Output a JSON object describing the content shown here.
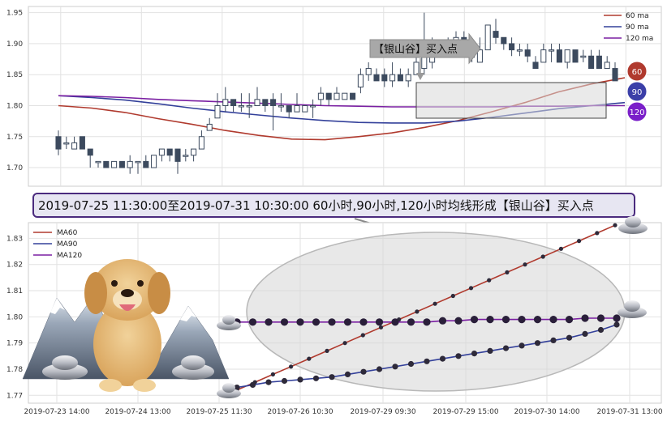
{
  "chart_data": [
    {
      "type": "candlestick",
      "legend": [
        {
          "name": "60 ma",
          "color": "#b03a2e"
        },
        {
          "name": "90 ma",
          "color": "#33409a"
        },
        {
          "name": "120 ma",
          "color": "#7a1fa2"
        }
      ],
      "legend_position": "top-right",
      "grid": true,
      "ylim": [
        1.67,
        1.96
      ],
      "yticks": [
        "1.70",
        "1.75",
        "1.80",
        "1.85",
        "1.90",
        "1.95"
      ],
      "annotation": "【银山谷】买入点",
      "badges": [
        {
          "label": "60",
          "color": "#b03a2e"
        },
        {
          "label": "90",
          "color": "#3b3fa8"
        },
        {
          "label": "120",
          "color": "#7a1fc9"
        }
      ],
      "up_color": "#ffffff",
      "down_color": "#3c4a5e",
      "candles": [
        {
          "o": 1.75,
          "c": 1.73,
          "h": 1.76,
          "l": 1.72
        },
        {
          "o": 1.74,
          "c": 1.74,
          "h": 1.75,
          "l": 1.73
        },
        {
          "o": 1.73,
          "c": 1.74,
          "h": 1.75,
          "l": 1.73
        },
        {
          "o": 1.75,
          "c": 1.73,
          "h": 1.75,
          "l": 1.73
        },
        {
          "o": 1.73,
          "c": 1.72,
          "h": 1.73,
          "l": 1.7
        },
        {
          "o": 1.71,
          "c": 1.71,
          "h": 1.71,
          "l": 1.7
        },
        {
          "o": 1.71,
          "c": 1.7,
          "h": 1.71,
          "l": 1.7
        },
        {
          "o": 1.7,
          "c": 1.71,
          "h": 1.71,
          "l": 1.7
        },
        {
          "o": 1.71,
          "c": 1.7,
          "h": 1.71,
          "l": 1.7
        },
        {
          "o": 1.7,
          "c": 1.71,
          "h": 1.72,
          "l": 1.69
        },
        {
          "o": 1.71,
          "c": 1.71,
          "h": 1.71,
          "l": 1.69
        },
        {
          "o": 1.71,
          "c": 1.7,
          "h": 1.72,
          "l": 1.7
        },
        {
          "o": 1.7,
          "c": 1.72,
          "h": 1.72,
          "l": 1.7
        },
        {
          "o": 1.72,
          "c": 1.73,
          "h": 1.73,
          "l": 1.71
        },
        {
          "o": 1.73,
          "c": 1.72,
          "h": 1.73,
          "l": 1.71
        },
        {
          "o": 1.73,
          "c": 1.71,
          "h": 1.73,
          "l": 1.69
        },
        {
          "o": 1.72,
          "c": 1.72,
          "h": 1.73,
          "l": 1.71
        },
        {
          "o": 1.72,
          "c": 1.73,
          "h": 1.73,
          "l": 1.71
        },
        {
          "o": 1.73,
          "c": 1.75,
          "h": 1.76,
          "l": 1.73
        },
        {
          "o": 1.76,
          "c": 1.77,
          "h": 1.78,
          "l": 1.76
        },
        {
          "o": 1.78,
          "c": 1.8,
          "h": 1.82,
          "l": 1.78
        },
        {
          "o": 1.8,
          "c": 1.81,
          "h": 1.83,
          "l": 1.79
        },
        {
          "o": 1.81,
          "c": 1.8,
          "h": 1.81,
          "l": 1.79
        },
        {
          "o": 1.8,
          "c": 1.8,
          "h": 1.82,
          "l": 1.79
        },
        {
          "o": 1.8,
          "c": 1.8,
          "h": 1.82,
          "l": 1.78
        },
        {
          "o": 1.8,
          "c": 1.81,
          "h": 1.83,
          "l": 1.8
        },
        {
          "o": 1.81,
          "c": 1.8,
          "h": 1.81,
          "l": 1.79
        },
        {
          "o": 1.81,
          "c": 1.8,
          "h": 1.82,
          "l": 1.76
        },
        {
          "o": 1.8,
          "c": 1.8,
          "h": 1.82,
          "l": 1.79
        },
        {
          "o": 1.8,
          "c": 1.79,
          "h": 1.8,
          "l": 1.78
        },
        {
          "o": 1.79,
          "c": 1.8,
          "h": 1.82,
          "l": 1.79
        },
        {
          "o": 1.79,
          "c": 1.8,
          "h": 1.8,
          "l": 1.79
        },
        {
          "o": 1.8,
          "c": 1.8,
          "h": 1.81,
          "l": 1.78
        },
        {
          "o": 1.81,
          "c": 1.82,
          "h": 1.83,
          "l": 1.8
        },
        {
          "o": 1.82,
          "c": 1.81,
          "h": 1.82,
          "l": 1.8
        },
        {
          "o": 1.81,
          "c": 1.82,
          "h": 1.83,
          "l": 1.81
        },
        {
          "o": 1.81,
          "c": 1.82,
          "h": 1.82,
          "l": 1.81
        },
        {
          "o": 1.82,
          "c": 1.81,
          "h": 1.82,
          "l": 1.81
        },
        {
          "o": 1.83,
          "c": 1.85,
          "h": 1.86,
          "l": 1.82
        },
        {
          "o": 1.85,
          "c": 1.86,
          "h": 1.87,
          "l": 1.84
        },
        {
          "o": 1.85,
          "c": 1.84,
          "h": 1.86,
          "l": 1.84
        },
        {
          "o": 1.85,
          "c": 1.84,
          "h": 1.86,
          "l": 1.83
        },
        {
          "o": 1.84,
          "c": 1.85,
          "h": 1.87,
          "l": 1.83
        },
        {
          "o": 1.85,
          "c": 1.84,
          "h": 1.86,
          "l": 1.84
        },
        {
          "o": 1.84,
          "c": 1.85,
          "h": 1.86,
          "l": 1.83
        },
        {
          "o": 1.85,
          "c": 1.87,
          "h": 1.88,
          "l": 1.85
        },
        {
          "o": 1.86,
          "c": 1.88,
          "h": 1.95,
          "l": 1.85
        },
        {
          "o": 1.87,
          "c": 1.89,
          "h": 1.91,
          "l": 1.86
        },
        {
          "o": 1.89,
          "c": 1.89,
          "h": 1.9,
          "l": 1.88
        },
        {
          "o": 1.89,
          "c": 1.9,
          "h": 1.91,
          "l": 1.88
        },
        {
          "o": 1.9,
          "c": 1.91,
          "h": 1.92,
          "l": 1.89
        },
        {
          "o": 1.91,
          "c": 1.89,
          "h": 1.92,
          "l": 1.88
        },
        {
          "o": 1.88,
          "c": 1.88,
          "h": 1.89,
          "l": 1.87
        },
        {
          "o": 1.87,
          "c": 1.89,
          "h": 1.91,
          "l": 1.87
        },
        {
          "o": 1.89,
          "c": 1.93,
          "h": 1.93,
          "l": 1.89
        },
        {
          "o": 1.92,
          "c": 1.91,
          "h": 1.94,
          "l": 1.9
        },
        {
          "o": 1.91,
          "c": 1.9,
          "h": 1.91,
          "l": 1.89
        },
        {
          "o": 1.9,
          "c": 1.89,
          "h": 1.91,
          "l": 1.88
        },
        {
          "o": 1.89,
          "c": 1.89,
          "h": 1.9,
          "l": 1.88
        },
        {
          "o": 1.89,
          "c": 1.88,
          "h": 1.9,
          "l": 1.87
        },
        {
          "o": 1.87,
          "c": 1.86,
          "h": 1.88,
          "l": 1.86
        },
        {
          "o": 1.87,
          "c": 1.89,
          "h": 1.9,
          "l": 1.87
        },
        {
          "o": 1.89,
          "c": 1.89,
          "h": 1.9,
          "l": 1.87
        },
        {
          "o": 1.89,
          "c": 1.87,
          "h": 1.9,
          "l": 1.87
        },
        {
          "o": 1.87,
          "c": 1.89,
          "h": 1.89,
          "l": 1.86
        },
        {
          "o": 1.89,
          "c": 1.87,
          "h": 1.89,
          "l": 1.87
        },
        {
          "o": 1.88,
          "c": 1.88,
          "h": 1.89,
          "l": 1.87
        },
        {
          "o": 1.88,
          "c": 1.86,
          "h": 1.89,
          "l": 1.86
        },
        {
          "o": 1.88,
          "c": 1.86,
          "h": 1.89,
          "l": 1.86
        },
        {
          "o": 1.86,
          "c": 1.87,
          "h": 1.88,
          "l": 1.86
        },
        {
          "o": 1.86,
          "c": 1.84,
          "h": 1.87,
          "l": 1.84
        }
      ],
      "ma": [
        {
          "name": "60 ma",
          "values": [
            1.8,
            1.796,
            1.789,
            1.779,
            1.77,
            1.76,
            1.752,
            1.746,
            1.745,
            1.75,
            1.756,
            1.765,
            1.776,
            1.79,
            1.805,
            1.822,
            1.835,
            1.845
          ]
        },
        {
          "name": "90 ma",
          "values": [
            1.816,
            1.813,
            1.809,
            1.803,
            1.796,
            1.79,
            1.785,
            1.78,
            1.776,
            1.773,
            1.772,
            1.772,
            1.775,
            1.781,
            1.788,
            1.795,
            1.8,
            1.805
          ]
        },
        {
          "name": "120 ma",
          "values": [
            1.816,
            1.815,
            1.813,
            1.81,
            1.808,
            1.806,
            1.804,
            1.802,
            1.8,
            1.799,
            1.798,
            1.798,
            1.798,
            1.798,
            1.799,
            1.799,
            1.8,
            1.8
          ]
        }
      ]
    },
    {
      "type": "line",
      "legend": [
        {
          "name": "MA60",
          "color": "#b03a2e"
        },
        {
          "name": "MA90",
          "color": "#33409a"
        },
        {
          "name": "MA120",
          "color": "#7a1fa2"
        }
      ],
      "legend_position": "top-left",
      "grid": true,
      "ylim": [
        1.767,
        1.836
      ],
      "yticks": [
        "1.77",
        "1.78",
        "1.79",
        "1.80",
        "1.81",
        "1.82",
        "1.83"
      ],
      "xticks": [
        "2019-07-23 14:00",
        "2019-07-24 13:00",
        "2019-07-25 11:30",
        "2019-07-26 10:30",
        "2019-07-29 09:30",
        "2019-07-29 15:00",
        "2019-07-30 14:00",
        "2019-07-31 13:00"
      ],
      "series": [
        {
          "name": "MA60",
          "color": "#b03a2e",
          "values": [
            1.772,
            1.775,
            1.778,
            1.781,
            1.784,
            1.787,
            1.79,
            1.793,
            1.796,
            1.799,
            1.802,
            1.805,
            1.808,
            1.811,
            1.814,
            1.817,
            1.82,
            1.823,
            1.826,
            1.829,
            1.832,
            1.835
          ]
        },
        {
          "name": "MA90",
          "color": "#33409a",
          "values": [
            1.773,
            1.774,
            1.775,
            1.7755,
            1.776,
            1.7765,
            1.777,
            1.778,
            1.779,
            1.78,
            1.781,
            1.782,
            1.783,
            1.784,
            1.785,
            1.786,
            1.787,
            1.788,
            1.789,
            1.79,
            1.791,
            1.792,
            1.7935,
            1.795,
            1.797
          ]
        },
        {
          "name": "MA120",
          "color": "#7a1fa2",
          "values": [
            1.798,
            1.798,
            1.798,
            1.798,
            1.798,
            1.798,
            1.798,
            1.798,
            1.798,
            1.798,
            1.798,
            1.798,
            1.798,
            1.7985,
            1.7985,
            1.799,
            1.799,
            1.799,
            1.799,
            1.799,
            1.799,
            1.799,
            1.7995,
            1.7995,
            1.7995
          ]
        }
      ]
    }
  ],
  "banner": "2019-07-25 11:30:00至2019-07-31 10:30:00 60小时,90小时,120小时均线形成【银山谷】买入点",
  "icons": {
    "ingot": "silver-ingot-icon",
    "dog": "dog-mascot-icon",
    "mountain": "mountain-icon"
  }
}
